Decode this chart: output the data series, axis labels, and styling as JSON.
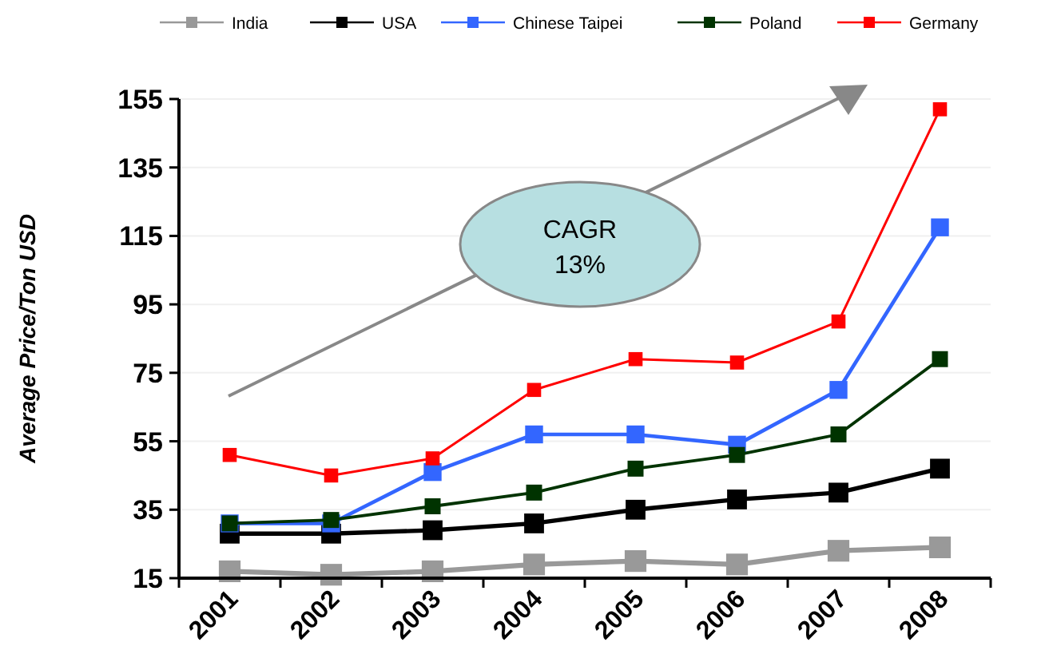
{
  "chart_data": {
    "type": "line",
    "ylabel": "Average Price/Ton USD",
    "categories": [
      "2001",
      "2002",
      "2003",
      "2004",
      "2005",
      "2006",
      "2007",
      "2008"
    ],
    "ylim": [
      15,
      155
    ],
    "yticks": [
      15,
      35,
      55,
      75,
      95,
      115,
      135,
      155
    ],
    "grid": "y",
    "legend": "top",
    "marker": "square",
    "line_style": "solid",
    "annotations": [
      "CAGR\n13%"
    ],
    "series": [
      {
        "name": "India",
        "color": "#999999",
        "values": [
          17,
          16,
          17,
          19,
          20,
          19,
          23,
          24
        ]
      },
      {
        "name": "USA",
        "color": "#000000",
        "values": [
          28,
          28,
          29,
          31,
          35,
          38,
          40,
          47
        ]
      },
      {
        "name": "Chinese Taipei",
        "color": "#3366ff",
        "values": [
          31,
          31,
          46,
          57,
          57,
          54,
          70,
          117.5
        ]
      },
      {
        "name": "Poland",
        "color": "#003300",
        "values": [
          31,
          32,
          36,
          40,
          47,
          51,
          57,
          79
        ]
      },
      {
        "name": "Germany",
        "color": "#ff0000",
        "values": [
          51,
          45,
          50,
          70,
          79,
          78,
          90,
          152
        ]
      }
    ]
  }
}
